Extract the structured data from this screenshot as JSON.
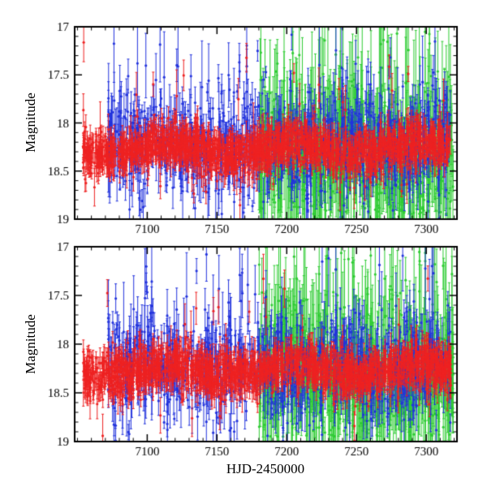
{
  "figure": {
    "background": "#ffffff",
    "frame_color": "#000000",
    "tick_label_color": "#000000"
  },
  "chart_data": {
    "type": "scatter",
    "title": "",
    "xlabel": "HJD-2450000",
    "ylabel": "Magnitude",
    "x_range": [
      7048,
      7322
    ],
    "y_range": {
      "min": 17,
      "max": 19,
      "inverted": true
    },
    "x_major_ticks": [
      7100,
      7150,
      7200,
      7250,
      7300
    ],
    "x_minor_step": 10,
    "y_major_ticks": [
      17,
      17.5,
      18,
      18.5,
      19
    ],
    "y_minor_step": 0.1,
    "grid": false,
    "legend": "none",
    "panels": [
      {
        "id": "top",
        "x_tick_labels_visible": true,
        "ylabel": "Magnitude"
      },
      {
        "id": "bottom",
        "x_tick_labels_visible": true,
        "ylabel": "Magnitude",
        "xlabel": "HJD-2450000"
      }
    ],
    "series": [
      {
        "name": "green-photometry",
        "color": "#2ecc33",
        "x_start": 7180,
        "x_end": 7320,
        "n": 650,
        "mean_mag": 18.35,
        "sigma": 0.33,
        "wave_amp": 0.0,
        "wave_period": 100,
        "err_min": 0.12,
        "err_max": 0.55,
        "outlier_bright_frac": 0.12,
        "outlier_bright": 1.2,
        "outlier_faint_frac": 0.05,
        "outlier_faint": 0.5,
        "seed": 11
      },
      {
        "name": "blue-photometry",
        "color": "#2233dd",
        "x_start": 7072,
        "x_end": 7318,
        "n": 900,
        "mean_mag": 18.22,
        "sigma": 0.24,
        "wave_amp": 0.05,
        "wave_period": 70,
        "err_min": 0.05,
        "err_max": 0.3,
        "outlier_bright_frac": 0.07,
        "outlier_bright": 1.1,
        "outlier_faint_frac": 0.06,
        "outlier_faint": 0.6,
        "seed": 7
      },
      {
        "name": "red-photometry",
        "color": "#ee2222",
        "x_start": 7054,
        "x_end": 7318,
        "n": 1600,
        "mean_mag": 18.27,
        "sigma": 0.11,
        "wave_amp": 0.06,
        "wave_period": 90,
        "err_min": 0.04,
        "err_max": 0.16,
        "outlier_bright_frac": 0.015,
        "outlier_bright": 0.9,
        "outlier_faint_frac": 0.02,
        "outlier_faint": 0.5,
        "seed": 3
      }
    ]
  }
}
